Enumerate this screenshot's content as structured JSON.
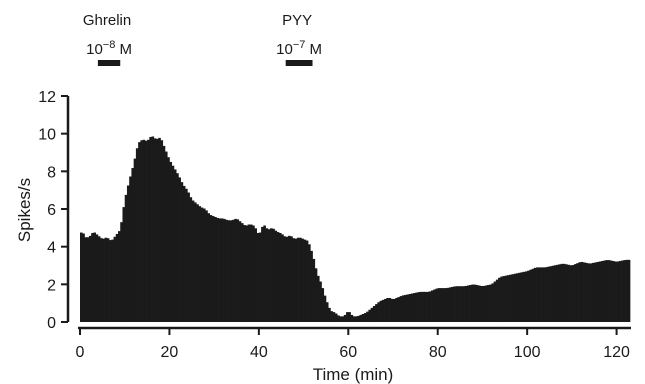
{
  "chart_data": {
    "type": "bar",
    "xlabel": "Time (min)",
    "ylabel": "Spikes/s",
    "xlim": [
      0,
      123
    ],
    "ylim": [
      0,
      12
    ],
    "xticks": [
      0,
      20,
      40,
      60,
      80,
      100,
      120
    ],
    "yticks": [
      0,
      2,
      4,
      6,
      8,
      10,
      12
    ],
    "grid": false,
    "bar_color": "#1a1a1a",
    "bin_width_min": 0.5,
    "histogram_points": [
      [
        0,
        4.6
      ],
      [
        0.5,
        4.9
      ],
      [
        1,
        4.5
      ],
      [
        2,
        4.5
      ],
      [
        3,
        4.8
      ],
      [
        4,
        4.6
      ],
      [
        5,
        4.4
      ],
      [
        6,
        4.5
      ],
      [
        7,
        4.3
      ],
      [
        8,
        4.6
      ],
      [
        9,
        4.9
      ],
      [
        10,
        6.5
      ],
      [
        11,
        7.5
      ],
      [
        12,
        8.4
      ],
      [
        13,
        9.5
      ],
      [
        14,
        9.7
      ],
      [
        15,
        9.6
      ],
      [
        16,
        9.9
      ],
      [
        17,
        9.7
      ],
      [
        18,
        9.8
      ],
      [
        19,
        9.2
      ],
      [
        20,
        8.6
      ],
      [
        21,
        8.2
      ],
      [
        22,
        7.8
      ],
      [
        23,
        7.3
      ],
      [
        24,
        7.0
      ],
      [
        25,
        6.5
      ],
      [
        26,
        6.3
      ],
      [
        27,
        6.1
      ],
      [
        28,
        6.0
      ],
      [
        29,
        5.7
      ],
      [
        30,
        5.6
      ],
      [
        31,
        5.5
      ],
      [
        32,
        5.5
      ],
      [
        33,
        5.4
      ],
      [
        34,
        5.4
      ],
      [
        35,
        5.5
      ],
      [
        36,
        5.3
      ],
      [
        37,
        5.1
      ],
      [
        38,
        5.2
      ],
      [
        39,
        5.1
      ],
      [
        40,
        4.6
      ],
      [
        41,
        5.2
      ],
      [
        42,
        4.9
      ],
      [
        43,
        5.0
      ],
      [
        44,
        4.8
      ],
      [
        45,
        4.7
      ],
      [
        46,
        4.5
      ],
      [
        47,
        4.6
      ],
      [
        48,
        4.4
      ],
      [
        49,
        4.5
      ],
      [
        50,
        4.4
      ],
      [
        51,
        4.3
      ],
      [
        52,
        3.6
      ],
      [
        53,
        2.6
      ],
      [
        54,
        2.0
      ],
      [
        55,
        1.2
      ],
      [
        56,
        0.6
      ],
      [
        57,
        0.5
      ],
      [
        58,
        0.3
      ],
      [
        59,
        0.3
      ],
      [
        60,
        0.6
      ],
      [
        61,
        0.3
      ],
      [
        62,
        0.3
      ],
      [
        63,
        0.4
      ],
      [
        64,
        0.5
      ],
      [
        65,
        0.7
      ],
      [
        66,
        0.9
      ],
      [
        67,
        1.1
      ],
      [
        68,
        1.2
      ],
      [
        69,
        1.3
      ],
      [
        70,
        1.2
      ],
      [
        72,
        1.4
      ],
      [
        74,
        1.5
      ],
      [
        76,
        1.6
      ],
      [
        78,
        1.6
      ],
      [
        80,
        1.8
      ],
      [
        82,
        1.8
      ],
      [
        84,
        1.9
      ],
      [
        86,
        1.9
      ],
      [
        88,
        2.0
      ],
      [
        90,
        1.9
      ],
      [
        92,
        2.0
      ],
      [
        94,
        2.4
      ],
      [
        96,
        2.5
      ],
      [
        98,
        2.6
      ],
      [
        100,
        2.7
      ],
      [
        102,
        2.9
      ],
      [
        104,
        2.9
      ],
      [
        106,
        3.0
      ],
      [
        108,
        3.1
      ],
      [
        110,
        3.0
      ],
      [
        112,
        3.2
      ],
      [
        114,
        3.1
      ],
      [
        116,
        3.2
      ],
      [
        118,
        3.3
      ],
      [
        120,
        3.2
      ],
      [
        122,
        3.3
      ]
    ],
    "applications": [
      {
        "name": "Ghrelin",
        "concentration": "10",
        "exponent": "−8",
        "unit": "M",
        "start": 4,
        "end": 9
      },
      {
        "name": "PYY",
        "concentration": "10",
        "exponent": "−7",
        "unit": "M",
        "start": 46,
        "end": 52
      }
    ]
  }
}
